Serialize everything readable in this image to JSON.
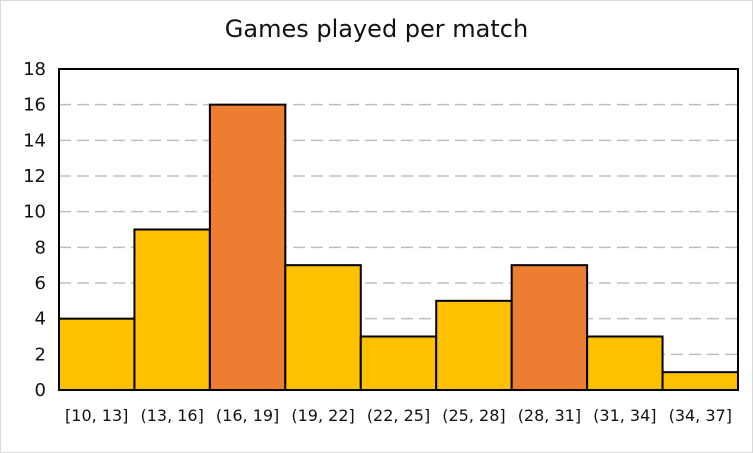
{
  "chart_data": {
    "type": "bar",
    "title": "Games played per match",
    "xlabel": "",
    "ylabel": "",
    "categories": [
      "[10, 13]",
      "(13, 16]",
      "(16, 19]",
      "(19, 22]",
      "(22, 25]",
      "(25, 28]",
      "(28, 31]",
      "(31, 34]",
      "(34, 37]"
    ],
    "values": [
      4,
      9,
      16,
      7,
      3,
      5,
      7,
      3,
      1
    ],
    "highlighted": [
      false,
      false,
      true,
      false,
      false,
      false,
      true,
      false,
      false
    ],
    "ylim": [
      0,
      18
    ],
    "yticks": [
      0,
      2,
      4,
      6,
      8,
      10,
      12,
      14,
      16,
      18
    ],
    "grid": "horizontal-dashed",
    "colors": {
      "bar": "#FFC000",
      "highlight": "#ED7D31",
      "bar_edge": "#000000",
      "grid": "#bfbfbf"
    }
  }
}
